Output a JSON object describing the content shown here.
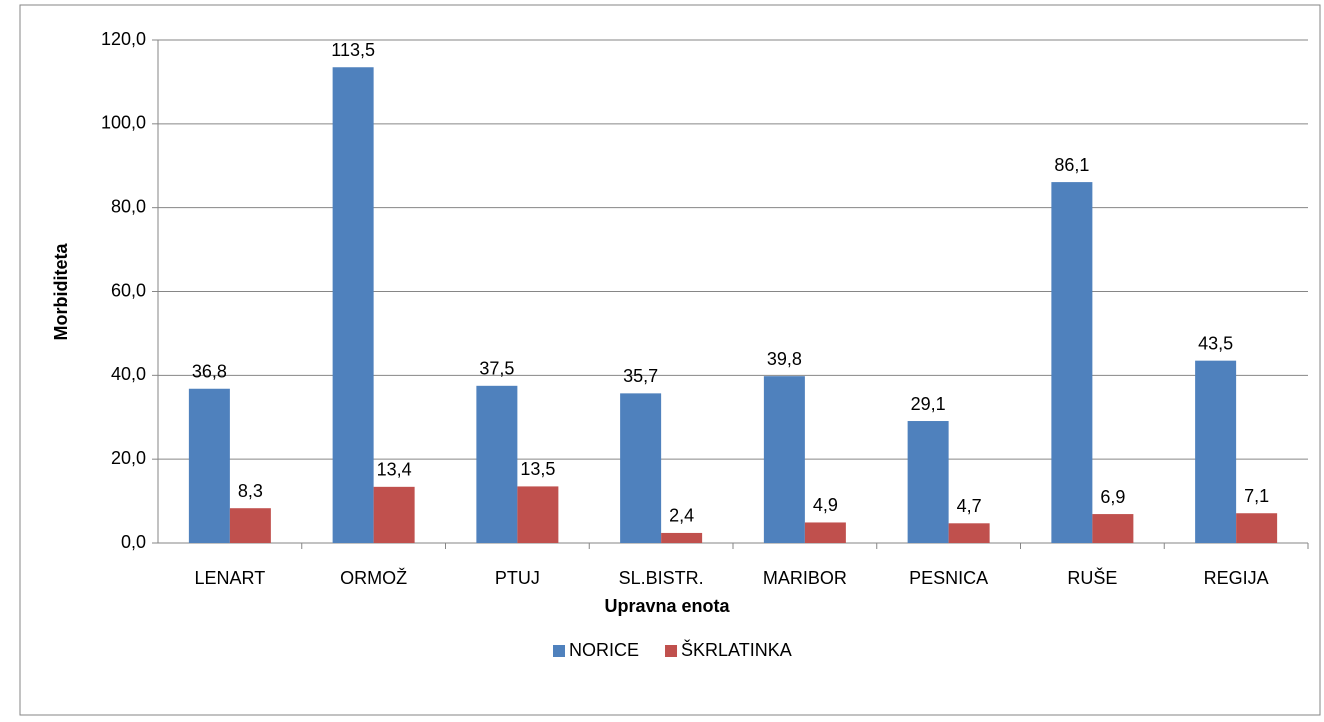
{
  "chart_data": {
    "type": "bar",
    "xlabel": "Upravna enota",
    "ylabel": "Morbiditeta",
    "categories": [
      "LENART",
      "ORMOŽ",
      "PTUJ",
      "SL.BISTR.",
      "MARIBOR",
      "PESNICA",
      "RUŠE",
      "REGIJA"
    ],
    "series": [
      {
        "name": "NORICE",
        "color": "#4f81bd",
        "values": [
          36.8,
          113.5,
          37.5,
          35.7,
          39.8,
          29.1,
          86.1,
          43.5
        ],
        "value_labels": [
          "36,8",
          "113,5",
          "37,5",
          "35,7",
          "39,8",
          "29,1",
          "86,1",
          "43,5"
        ]
      },
      {
        "name": "ŠKRLATINKA",
        "color": "#c0504d",
        "values": [
          8.3,
          13.4,
          13.5,
          2.4,
          4.9,
          4.7,
          6.9,
          7.1
        ],
        "value_labels": [
          "8,3",
          "13,4",
          "13,5",
          "2,4",
          "4,9",
          "4,7",
          "6,9",
          "7,1"
        ]
      }
    ],
    "ylim": [
      0,
      120
    ],
    "yticks": [
      {
        "value": 0,
        "label": "0,0"
      },
      {
        "value": 20,
        "label": "20,0"
      },
      {
        "value": 40,
        "label": "40,0"
      },
      {
        "value": 60,
        "label": "60,0"
      },
      {
        "value": 80,
        "label": "80,0"
      },
      {
        "value": 100,
        "label": "100,0"
      },
      {
        "value": 120,
        "label": "120,0"
      }
    ],
    "grid": true,
    "legend": "bottom"
  }
}
